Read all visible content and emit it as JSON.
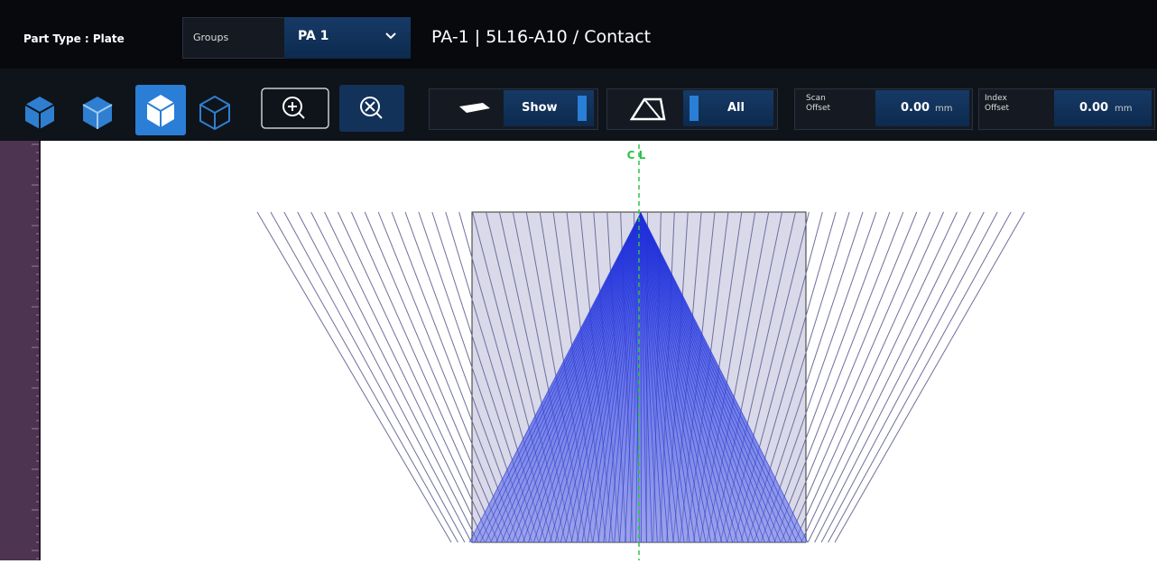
{
  "header": {
    "part_type": "Part Type : Plate",
    "groups_label": "Groups",
    "group_value": "PA 1",
    "probe_info": "PA-1 | 5L16-A10  / Contact"
  },
  "toolbar": {
    "wedge_toggle": "Show",
    "view_toggle": "All",
    "scan_offset": {
      "label": "Scan Offset",
      "value": "0.00",
      "unit": "mm"
    },
    "index_offset": {
      "label": "Index Offset",
      "value": "0.00",
      "unit": "mm"
    }
  },
  "canvas": {
    "centerline_label": "C L"
  }
}
